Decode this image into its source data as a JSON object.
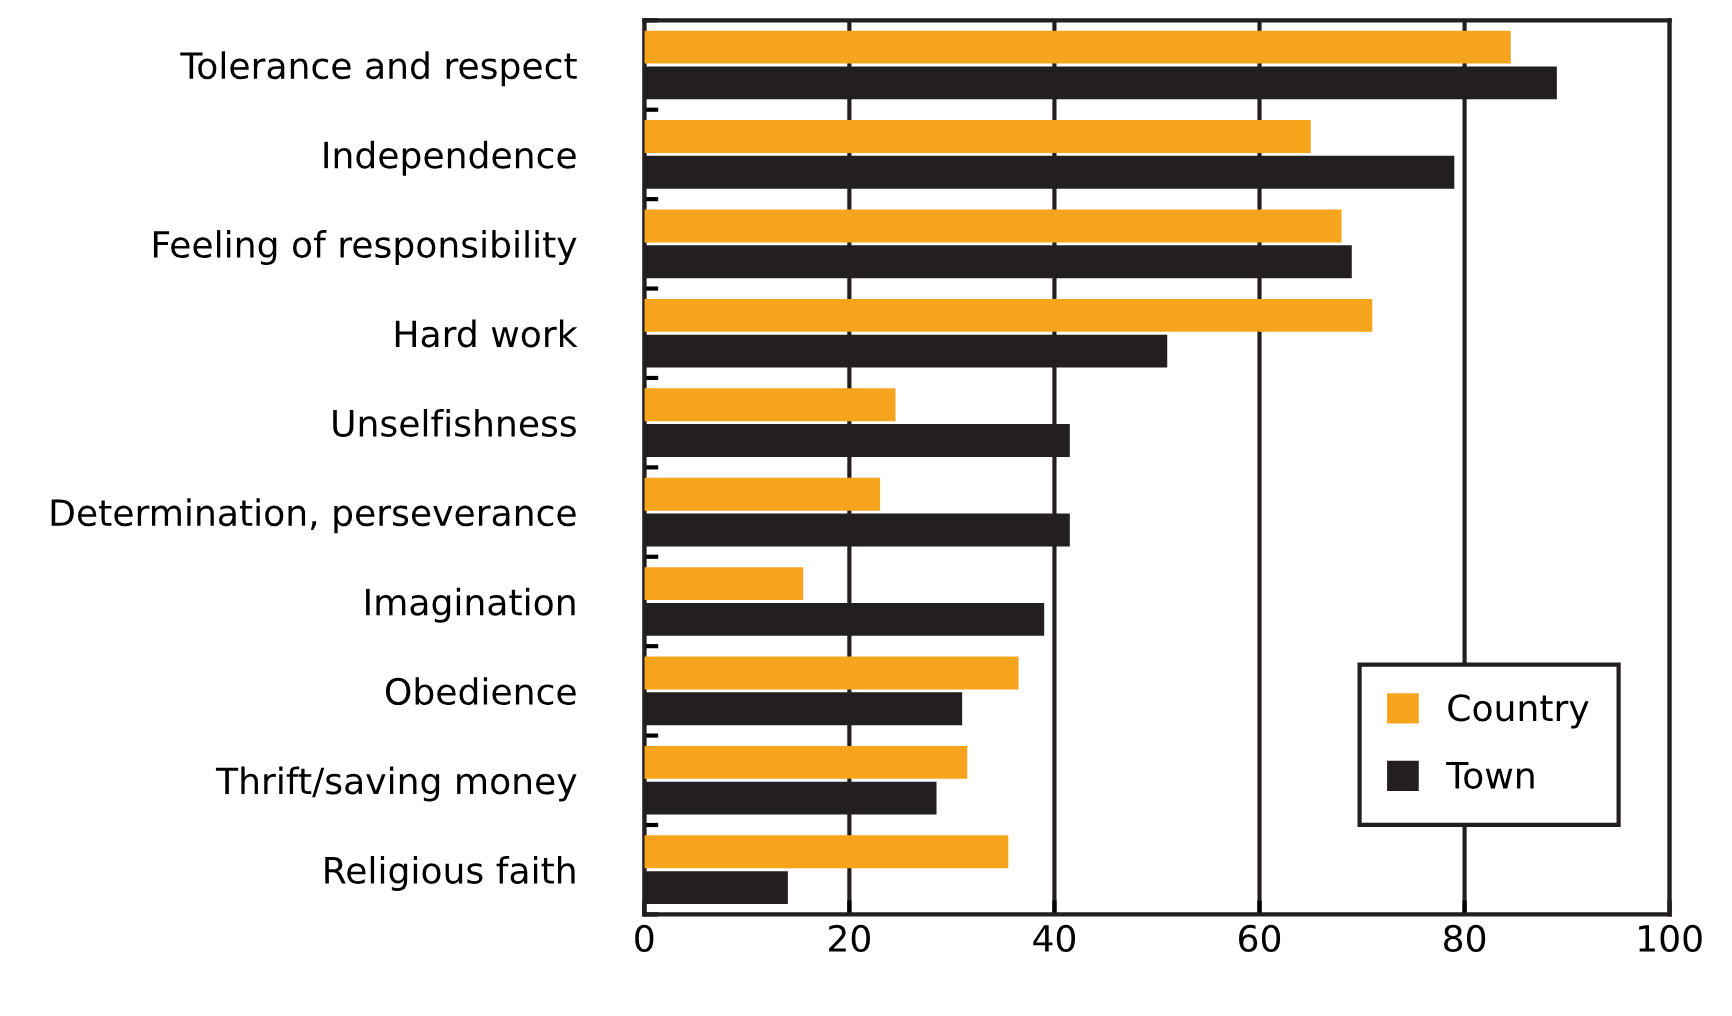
{
  "chart_data": {
    "type": "bar",
    "orientation": "horizontal",
    "categories": [
      "Tolerance and respect",
      "Independence",
      "Feeling of responsibility",
      "Hard work",
      "Unselfishness",
      "Determination, perseverance",
      "Imagination",
      "Obedience",
      "Thrift/saving money",
      "Religious faith"
    ],
    "series": [
      {
        "name": "Country",
        "color": "#f7a41d",
        "values": [
          84.5,
          65,
          68,
          71,
          24.5,
          23,
          15.5,
          36.5,
          31.5,
          35.5
        ]
      },
      {
        "name": "Town",
        "color": "#231f20",
        "values": [
          89,
          79,
          69,
          51,
          41.5,
          41.5,
          39,
          31,
          28.5,
          14
        ]
      }
    ],
    "xlim": [
      0,
      100
    ],
    "xticks": [
      0,
      20,
      40,
      60,
      80,
      100
    ],
    "grid": "x",
    "legend": "bottom right"
  }
}
